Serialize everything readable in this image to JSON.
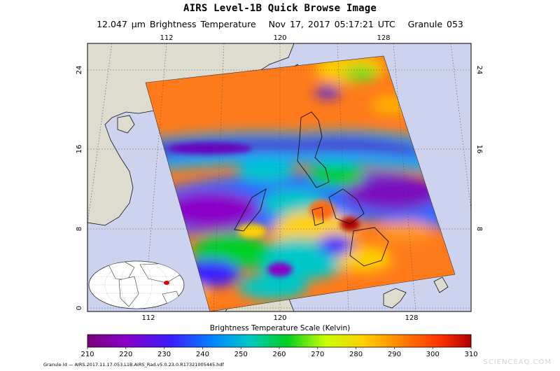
{
  "header": {
    "title": "AIRS Level-1B Quick Browse Image",
    "channel": "12.047 μm Brightness Temperature",
    "datetime": "Nov 17, 2017 05:17:21 UTC",
    "granule": "Granule 053"
  },
  "map": {
    "lon_ticks": [
      "112",
      "120",
      "128"
    ],
    "lat_ticks": [
      "24",
      "16",
      "8",
      "0"
    ],
    "colors": {
      "ocean": "#cdd3ee",
      "land": "#dddccf",
      "coast": "#111111",
      "grid": "#555555"
    }
  },
  "colorbar": {
    "label": "Brightness Temperature Scale (Kelvin)",
    "ticks": [
      "210",
      "220",
      "230",
      "240",
      "250",
      "260",
      "270",
      "280",
      "290",
      "300",
      "310"
    ],
    "colors": [
      "#7a007a",
      "#8a00c8",
      "#3a1eff",
      "#0088ff",
      "#00c8c8",
      "#00d020",
      "#c8ff00",
      "#ffd000",
      "#ff8000",
      "#ff3000",
      "#b00000"
    ]
  },
  "footer": {
    "granule_id": "Granule Id — AIRS.2017.11.17.053.L1B.AIRS_Rad.v5.0.23.0.R17321005445.hdf",
    "watermark": "SCIENCEAQ.COM"
  }
}
